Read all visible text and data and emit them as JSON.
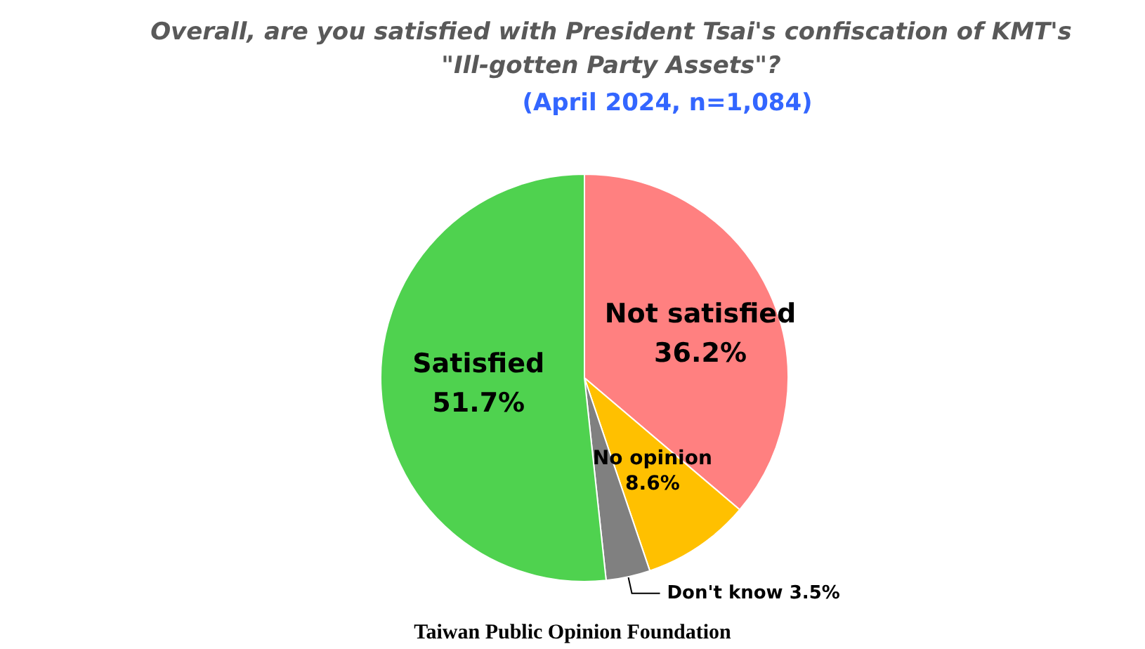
{
  "chart_data": {
    "type": "pie",
    "title": "Overall, are you satisfied with President Tsai's confiscation of KMT's\n\"Ill-gotten Party Assets\"?",
    "subtitle": "(April 2024, n=1,084)",
    "categories": [
      "Not satisfied",
      "No opinion",
      "Don't know",
      "Satisfied"
    ],
    "values": [
      36.2,
      8.6,
      3.5,
      51.7
    ],
    "colors": [
      "#ff8080",
      "#ffc000",
      "#808080",
      "#4fd24f"
    ],
    "value_labels": [
      "36.2%",
      "8.6%",
      "3.5%",
      "51.7%"
    ],
    "annotations": [
      "Taiwan Public Opinion Foundation"
    ]
  }
}
